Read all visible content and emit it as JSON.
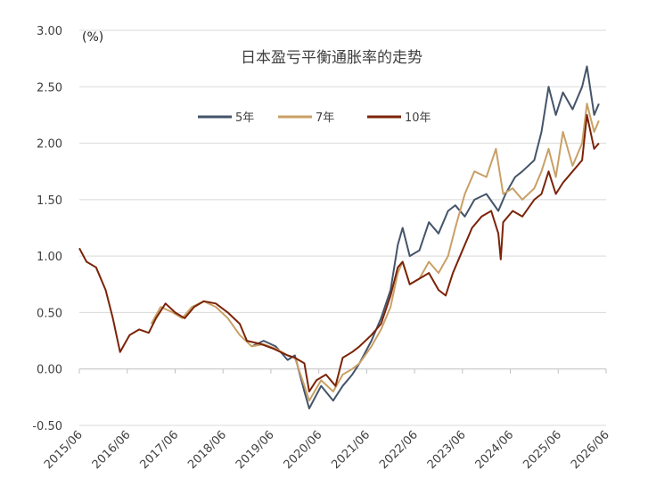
{
  "chart_data": {
    "type": "line",
    "title": "日本盈亏平衡通胀率的走势",
    "unit_label": "(%)",
    "xlabel": "",
    "ylabel": "",
    "ylim": [
      -0.5,
      3.0
    ],
    "yticks": [
      -0.5,
      0.0,
      0.5,
      1.0,
      1.5,
      2.0,
      2.5,
      3.0
    ],
    "ytick_labels": [
      "-0.50",
      "0.00",
      "0.50",
      "1.00",
      "1.50",
      "2.00",
      "2.50",
      "3.00"
    ],
    "xlim": [
      2015.5,
      2026.5
    ],
    "xtick_labels": [
      "2015/06",
      "2016/06",
      "2017/06",
      "2018/06",
      "2019/06",
      "2020/06",
      "2021/06",
      "2022/06",
      "2023/06",
      "2024/06",
      "2025/06",
      "2026/06"
    ],
    "grid": "horizontal",
    "legend_position": "top-center",
    "colors": {
      "5年": "#44546a",
      "7年": "#c9a066",
      "10年": "#7b2308",
      "grid": "#d9d9d9",
      "axis": "#bfbfbf"
    },
    "series": [
      {
        "name": "5年",
        "start": 2019.1,
        "points": [
          [
            2019.1,
            0.2
          ],
          [
            2019.35,
            0.25
          ],
          [
            2019.6,
            0.2
          ],
          [
            2019.85,
            0.08
          ],
          [
            2020.0,
            0.12
          ],
          [
            2020.2,
            -0.2
          ],
          [
            2020.3,
            -0.35
          ],
          [
            2020.55,
            -0.15
          ],
          [
            2020.8,
            -0.28
          ],
          [
            2021.0,
            -0.15
          ],
          [
            2021.2,
            -0.05
          ],
          [
            2021.35,
            0.05
          ],
          [
            2021.6,
            0.25
          ],
          [
            2021.8,
            0.45
          ],
          [
            2022.0,
            0.7
          ],
          [
            2022.15,
            1.1
          ],
          [
            2022.25,
            1.25
          ],
          [
            2022.4,
            1.0
          ],
          [
            2022.6,
            1.05
          ],
          [
            2022.8,
            1.3
          ],
          [
            2023.0,
            1.2
          ],
          [
            2023.2,
            1.4
          ],
          [
            2023.35,
            1.45
          ],
          [
            2023.55,
            1.35
          ],
          [
            2023.75,
            1.5
          ],
          [
            2024.0,
            1.55
          ],
          [
            2024.25,
            1.4
          ],
          [
            2024.4,
            1.55
          ],
          [
            2024.6,
            1.7
          ],
          [
            2024.75,
            1.75
          ],
          [
            2025.0,
            1.85
          ],
          [
            2025.15,
            2.1
          ],
          [
            2025.3,
            2.5
          ],
          [
            2025.45,
            2.25
          ],
          [
            2025.6,
            2.45
          ],
          [
            2025.8,
            2.3
          ],
          [
            2026.0,
            2.5
          ],
          [
            2026.1,
            2.68
          ],
          [
            2026.25,
            2.25
          ],
          [
            2026.35,
            2.35
          ]
        ]
      },
      {
        "name": "7年",
        "start": 2017.0,
        "points": [
          [
            2017.0,
            0.4
          ],
          [
            2017.2,
            0.55
          ],
          [
            2017.45,
            0.5
          ],
          [
            2017.65,
            0.45
          ],
          [
            2017.85,
            0.55
          ],
          [
            2018.1,
            0.6
          ],
          [
            2018.35,
            0.55
          ],
          [
            2018.6,
            0.45
          ],
          [
            2018.85,
            0.3
          ],
          [
            2019.1,
            0.2
          ],
          [
            2019.35,
            0.22
          ],
          [
            2019.6,
            0.18
          ],
          [
            2019.85,
            0.12
          ],
          [
            2020.0,
            0.1
          ],
          [
            2020.2,
            -0.15
          ],
          [
            2020.3,
            -0.28
          ],
          [
            2020.55,
            -0.1
          ],
          [
            2020.8,
            -0.2
          ],
          [
            2021.0,
            -0.05
          ],
          [
            2021.2,
            0.0
          ],
          [
            2021.35,
            0.05
          ],
          [
            2021.6,
            0.2
          ],
          [
            2021.8,
            0.35
          ],
          [
            2022.0,
            0.55
          ],
          [
            2022.15,
            0.85
          ],
          [
            2022.25,
            0.95
          ],
          [
            2022.4,
            0.75
          ],
          [
            2022.6,
            0.8
          ],
          [
            2022.8,
            0.95
          ],
          [
            2023.0,
            0.85
          ],
          [
            2023.2,
            1.0
          ],
          [
            2023.35,
            1.25
          ],
          [
            2023.55,
            1.55
          ],
          [
            2023.75,
            1.75
          ],
          [
            2024.0,
            1.7
          ],
          [
            2024.2,
            1.95
          ],
          [
            2024.35,
            1.55
          ],
          [
            2024.55,
            1.6
          ],
          [
            2024.75,
            1.5
          ],
          [
            2025.0,
            1.6
          ],
          [
            2025.15,
            1.75
          ],
          [
            2025.3,
            1.95
          ],
          [
            2025.45,
            1.7
          ],
          [
            2025.6,
            2.1
          ],
          [
            2025.8,
            1.8
          ],
          [
            2026.0,
            2.0
          ],
          [
            2026.1,
            2.35
          ],
          [
            2026.25,
            2.1
          ],
          [
            2026.35,
            2.2
          ]
        ]
      },
      {
        "name": "10年",
        "start": 2015.5,
        "points": [
          [
            2015.5,
            1.07
          ],
          [
            2015.65,
            0.95
          ],
          [
            2015.85,
            0.9
          ],
          [
            2016.05,
            0.7
          ],
          [
            2016.2,
            0.45
          ],
          [
            2016.35,
            0.15
          ],
          [
            2016.55,
            0.3
          ],
          [
            2016.75,
            0.35
          ],
          [
            2016.95,
            0.32
          ],
          [
            2017.1,
            0.45
          ],
          [
            2017.3,
            0.58
          ],
          [
            2017.5,
            0.5
          ],
          [
            2017.7,
            0.45
          ],
          [
            2017.9,
            0.55
          ],
          [
            2018.1,
            0.6
          ],
          [
            2018.35,
            0.58
          ],
          [
            2018.6,
            0.5
          ],
          [
            2018.85,
            0.4
          ],
          [
            2019.0,
            0.25
          ],
          [
            2019.3,
            0.22
          ],
          [
            2019.55,
            0.18
          ],
          [
            2019.85,
            0.12
          ],
          [
            2020.0,
            0.1
          ],
          [
            2020.2,
            0.05
          ],
          [
            2020.3,
            -0.2
          ],
          [
            2020.45,
            -0.1
          ],
          [
            2020.65,
            -0.05
          ],
          [
            2020.85,
            -0.15
          ],
          [
            2021.0,
            0.1
          ],
          [
            2021.2,
            0.15
          ],
          [
            2021.35,
            0.2
          ],
          [
            2021.6,
            0.3
          ],
          [
            2021.8,
            0.4
          ],
          [
            2022.0,
            0.65
          ],
          [
            2022.15,
            0.9
          ],
          [
            2022.25,
            0.95
          ],
          [
            2022.4,
            0.75
          ],
          [
            2022.6,
            0.8
          ],
          [
            2022.8,
            0.85
          ],
          [
            2023.0,
            0.7
          ],
          [
            2023.15,
            0.65
          ],
          [
            2023.3,
            0.85
          ],
          [
            2023.5,
            1.05
          ],
          [
            2023.7,
            1.25
          ],
          [
            2023.9,
            1.35
          ],
          [
            2024.1,
            1.4
          ],
          [
            2024.25,
            1.2
          ],
          [
            2024.3,
            0.97
          ],
          [
            2024.35,
            1.3
          ],
          [
            2024.55,
            1.4
          ],
          [
            2024.75,
            1.35
          ],
          [
            2025.0,
            1.5
          ],
          [
            2025.15,
            1.55
          ],
          [
            2025.3,
            1.75
          ],
          [
            2025.45,
            1.55
          ],
          [
            2025.6,
            1.65
          ],
          [
            2025.8,
            1.75
          ],
          [
            2026.0,
            1.85
          ],
          [
            2026.1,
            2.25
          ],
          [
            2026.25,
            1.95
          ],
          [
            2026.35,
            2.0
          ]
        ]
      }
    ]
  }
}
